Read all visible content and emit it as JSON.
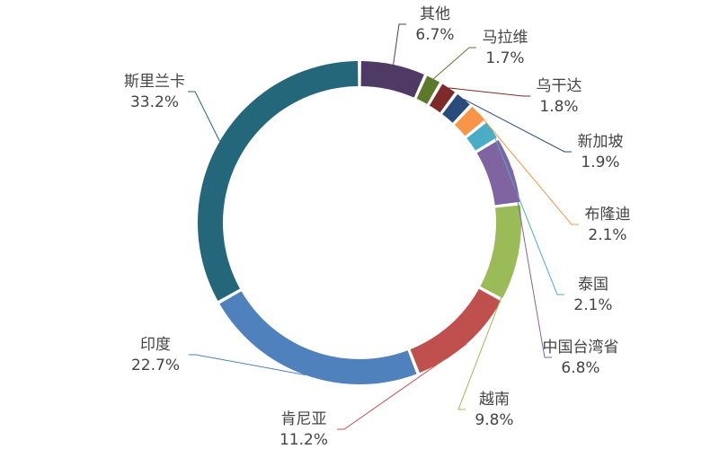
{
  "chart_data": {
    "type": "pie",
    "variant": "donut",
    "start_category": "其他",
    "direction": "clockwise",
    "legend": "none",
    "slices": [
      {
        "label": "其他",
        "value_label": "6.7%",
        "value": 6.7,
        "color": "#4f3a66"
      },
      {
        "label": "马拉维",
        "value_label": "1.7%",
        "value": 1.7,
        "color": "#5d7a2c"
      },
      {
        "label": "乌干达",
        "value_label": "1.8%",
        "value": 1.8,
        "color": "#7d2a28"
      },
      {
        "label": "新加坡",
        "value_label": "1.9%",
        "value": 1.9,
        "color": "#2b4c7a"
      },
      {
        "label": "布隆迪",
        "value_label": "2.1%",
        "value": 2.1,
        "color": "#f79646"
      },
      {
        "label": "泰国",
        "value_label": "2.1%",
        "value": 2.1,
        "color": "#4bacc6"
      },
      {
        "label": "中国台湾省",
        "value_label": "6.8%",
        "value": 6.8,
        "color": "#8064a2"
      },
      {
        "label": "越南",
        "value_label": "9.8%",
        "value": 9.8,
        "color": "#9bbb59"
      },
      {
        "label": "肯尼亚",
        "value_label": "11.2%",
        "value": 11.2,
        "color": "#c0504d"
      },
      {
        "label": "印度",
        "value_label": "22.7%",
        "value": 22.7,
        "color": "#4f81bd"
      },
      {
        "label": "斯里兰卡",
        "value_label": "33.2%",
        "value": 33.2,
        "color": "#24677a"
      }
    ]
  }
}
